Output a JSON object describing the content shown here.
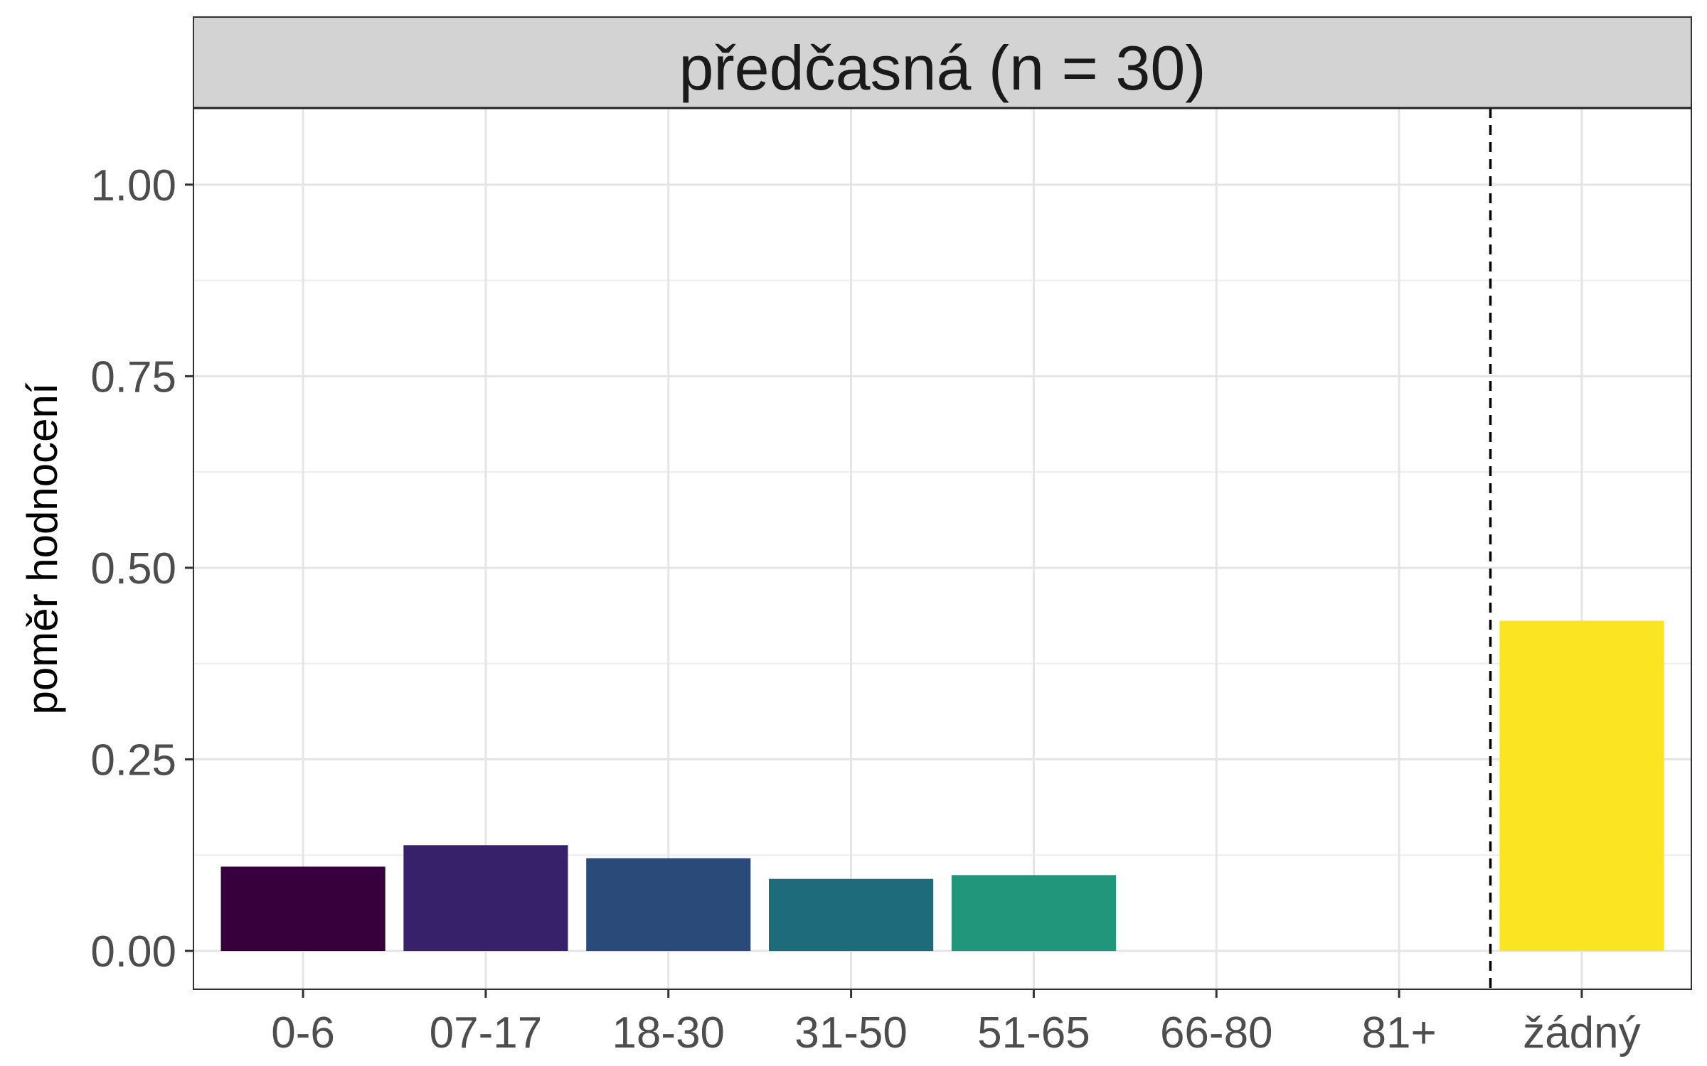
{
  "chart_data": {
    "type": "bar",
    "title": "předčasná (n = 30)",
    "xlabel": "",
    "ylabel": "poměr hodnocení",
    "categories": [
      "0-6",
      "07-17",
      "18-30",
      "31-50",
      "51-65",
      "66-80",
      "81+",
      "žádný"
    ],
    "values": [
      0.11,
      0.138,
      0.121,
      0.094,
      0.099,
      0,
      0,
      0.431
    ],
    "colors": [
      "#35003c",
      "#37216a",
      "#2a4a79",
      "#1e6c7b",
      "#21967a",
      "#5fc05f",
      "#b5dd2b",
      "#fbe422"
    ],
    "ylim": [
      -0.05,
      1.1
    ],
    "yticks": [
      0,
      0.25,
      0.5,
      0.75,
      1.0
    ],
    "ytick_labels": [
      "0.00",
      "0.25",
      "0.50",
      "0.75",
      "1.00"
    ],
    "grid": true,
    "reference_line": {
      "between": [
        "81+",
        "žádný"
      ],
      "style": "dashed"
    }
  }
}
